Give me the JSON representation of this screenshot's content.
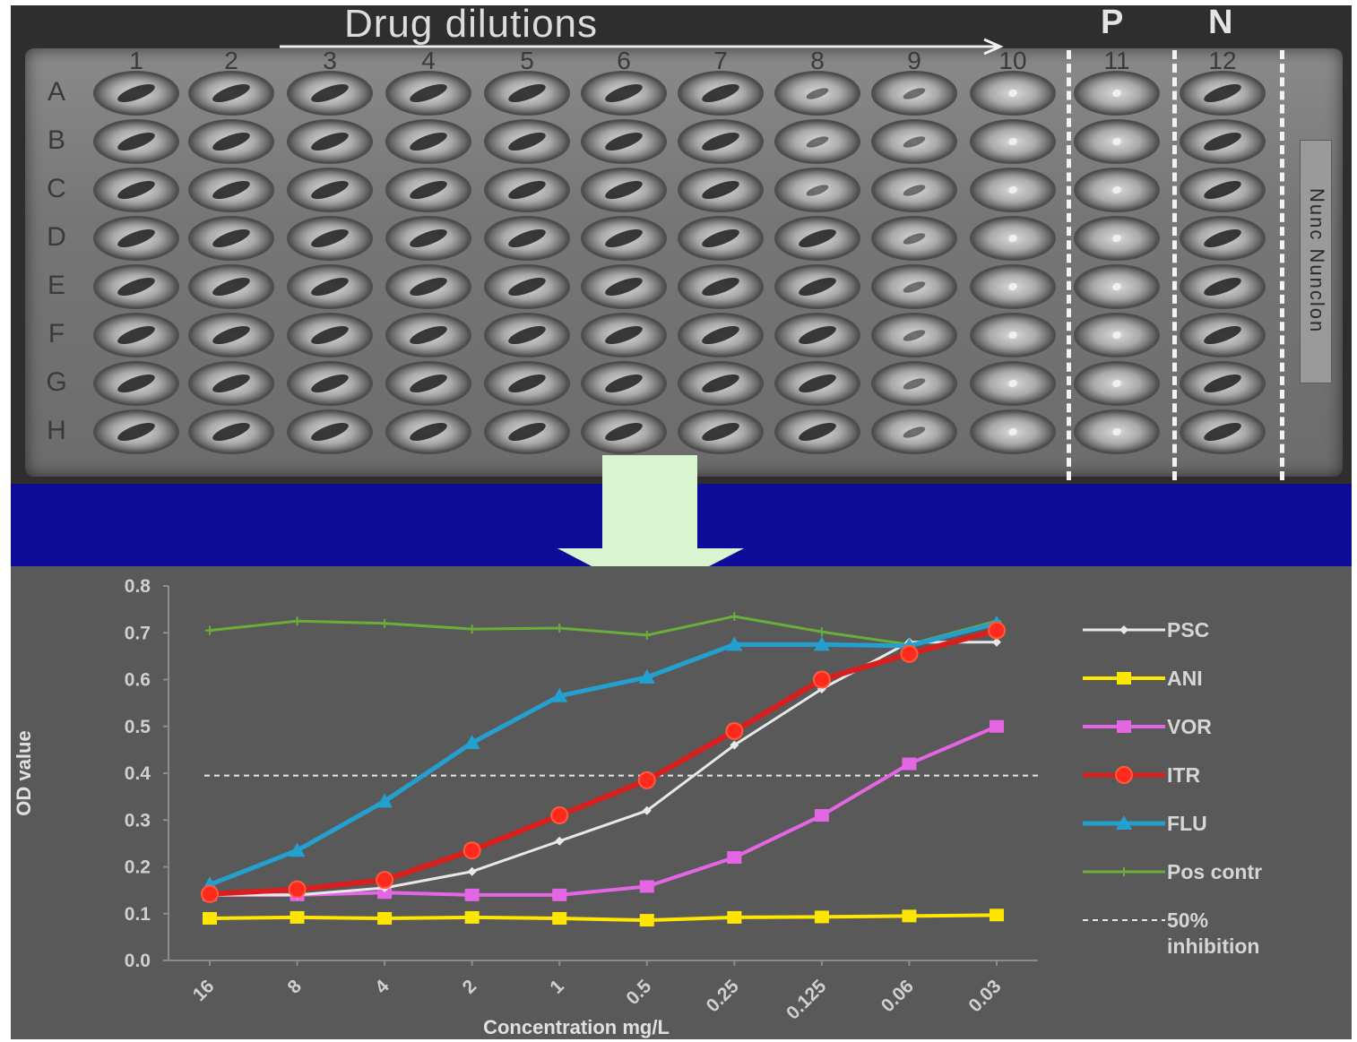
{
  "plate": {
    "title": "Drug dilutions",
    "pos_label": "P",
    "neg_label": "N",
    "columns": [
      "1",
      "2",
      "3",
      "4",
      "5",
      "6",
      "7",
      "8",
      "9",
      "10",
      "11",
      "12"
    ],
    "rows": [
      "A",
      "B",
      "C",
      "D",
      "E",
      "F",
      "G",
      "H"
    ],
    "lid_text": "Nunc  Nunclon"
  },
  "colors": {
    "band": "#0d0d9a",
    "arrow": "#d9f5cf",
    "chart_bg": "#595959"
  },
  "chart_data": {
    "type": "line",
    "title": "",
    "xlabel": "Concentration mg/L",
    "ylabel": "OD value",
    "ylim": [
      0.0,
      0.8
    ],
    "yticks": [
      "0.0",
      "0.1",
      "0.2",
      "0.3",
      "0.4",
      "0.5",
      "0.6",
      "0.7",
      "0.8"
    ],
    "categories": [
      "16",
      "8",
      "4",
      "2",
      "1",
      "0.5",
      "0.25",
      "0.125",
      "0.06",
      "0.03"
    ],
    "legend_position": "right",
    "series": [
      {
        "name": "PSC",
        "color": "#e8e8e8",
        "marker": "diamond",
        "width": 3,
        "values": [
          0.14,
          0.14,
          0.155,
          0.19,
          0.255,
          0.32,
          0.46,
          0.58,
          0.68,
          0.68
        ]
      },
      {
        "name": "ANI",
        "color": "#ffe600",
        "marker": "square",
        "width": 4,
        "values": [
          0.09,
          0.092,
          0.09,
          0.092,
          0.09,
          0.086,
          0.092,
          0.093,
          0.095,
          0.097
        ]
      },
      {
        "name": "VOR",
        "color": "#e466e4",
        "marker": "square",
        "width": 4,
        "values": [
          0.14,
          0.14,
          0.145,
          0.14,
          0.14,
          0.158,
          0.22,
          0.31,
          0.42,
          0.5
        ]
      },
      {
        "name": "ITR",
        "color": "#d91e1e",
        "marker": "circle",
        "width": 6,
        "values": [
          0.142,
          0.152,
          0.172,
          0.235,
          0.31,
          0.385,
          0.49,
          0.6,
          0.655,
          0.705
        ]
      },
      {
        "name": "FLU",
        "color": "#23a0d0",
        "marker": "triangle",
        "width": 5,
        "values": [
          0.162,
          0.235,
          0.34,
          0.465,
          0.565,
          0.605,
          0.675,
          0.675,
          0.672,
          0.72
        ]
      },
      {
        "name": "Pos contr",
        "color": "#6aae3a",
        "marker": "cross",
        "width": 3,
        "values": [
          0.705,
          0.725,
          0.72,
          0.708,
          0.71,
          0.695,
          0.735,
          0.702,
          0.675,
          0.725
        ]
      }
    ],
    "reference_line": {
      "name_lines": [
        "50%",
        "inhibition"
      ],
      "value": 0.395,
      "style": "dashed",
      "color": "#e6e6e6"
    }
  }
}
